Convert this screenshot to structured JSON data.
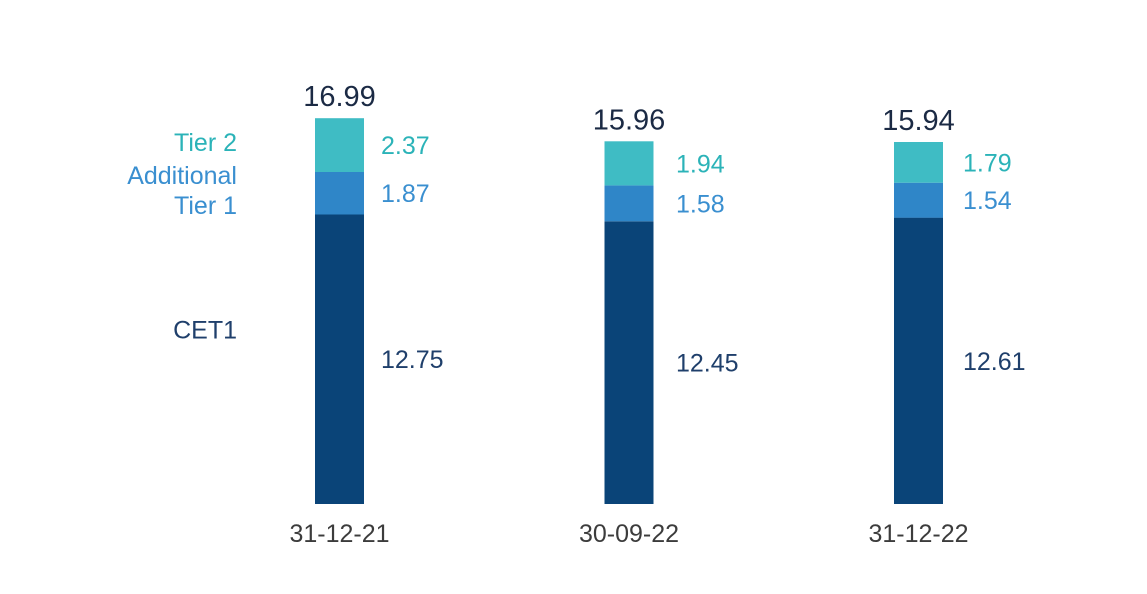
{
  "chart_data": {
    "type": "bar",
    "stacked": true,
    "categories": [
      "31-12-21",
      "30-09-22",
      "31-12-22"
    ],
    "series": [
      {
        "name": "CET1",
        "values": [
          12.75,
          12.45,
          12.61
        ],
        "color": "#0a4478",
        "label_color": "#1f3f6b"
      },
      {
        "name": "Additional Tier 1",
        "values": [
          1.87,
          1.58,
          1.54
        ],
        "color": "#2f86c8",
        "label_color": "#3a8fd0"
      },
      {
        "name": "Tier 2",
        "values": [
          2.37,
          1.94,
          1.79
        ],
        "color": "#3fbcc4",
        "label_color": "#2bb3b8"
      }
    ],
    "series_labels": [
      [
        "CET1"
      ],
      [
        "Additional",
        "Tier 1"
      ],
      [
        "Tier 2"
      ]
    ],
    "totals": [
      "16.99",
      "15.96",
      "15.94"
    ],
    "value_labels": [
      [
        "12.75",
        "12.45",
        "12.61"
      ],
      [
        "1.87",
        "1.58",
        "1.54"
      ],
      [
        "2.37",
        "1.94",
        "1.79"
      ]
    ],
    "title": "",
    "xlabel": "",
    "ylabel": "",
    "ylim": [
      0,
      17
    ],
    "grid": false,
    "legend": "left-inline",
    "total_color": "#1b2a44",
    "category_color": "#3c3c3c"
  }
}
